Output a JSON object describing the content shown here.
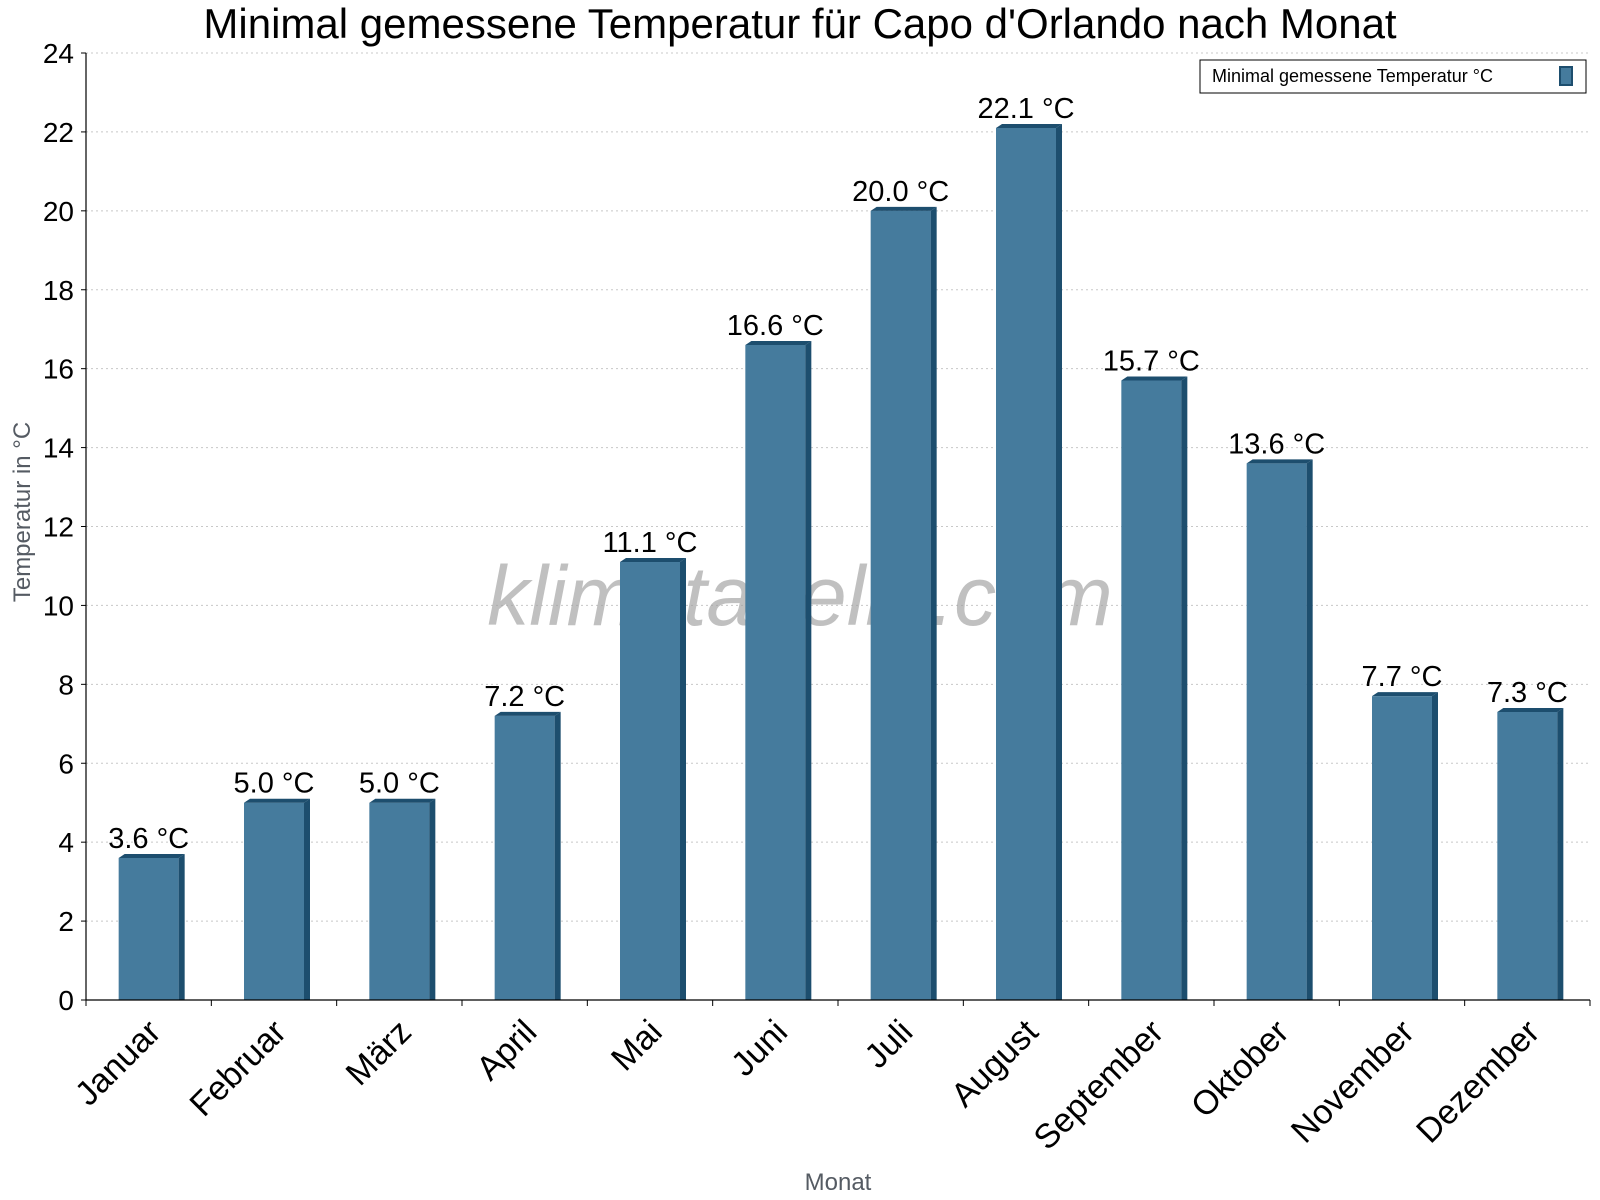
{
  "chart_data": {
    "type": "bar",
    "title": "Minimal gemessene Temperatur für Capo d'Orlando nach Monat",
    "xlabel": "Monat",
    "ylabel": "Temperatur in °C",
    "categories": [
      "Januar",
      "Februar",
      "März",
      "April",
      "Mai",
      "Juni",
      "Juli",
      "August",
      "September",
      "Oktober",
      "November",
      "Dezember"
    ],
    "series": [
      {
        "name": "Minimal gemessene Temperatur °C",
        "values": [
          3.6,
          5.0,
          5.0,
          7.2,
          11.1,
          16.6,
          20.0,
          22.1,
          15.7,
          13.6,
          7.7,
          7.3
        ],
        "labels": [
          "3.6 °C",
          "5.0 °C",
          "5.0 °C",
          "7.2 °C",
          "11.1 °C",
          "16.6 °C",
          "20.0 °C",
          "22.1 °C",
          "15.7 °C",
          "13.6 °C",
          "7.7 °C",
          "7.3 °C"
        ]
      }
    ],
    "yticks": [
      "0",
      "2",
      "4",
      "6",
      "8",
      "10",
      "12",
      "14",
      "16",
      "18",
      "20",
      "22",
      "24"
    ],
    "ylim": [
      0,
      24
    ],
    "grid": true,
    "legend_position": "top-right",
    "colors": {
      "bar": "#457b9d",
      "bar_side": "#1d4e6e",
      "grid": "#c8c8c8"
    }
  },
  "watermark": "klimatabelle.com"
}
